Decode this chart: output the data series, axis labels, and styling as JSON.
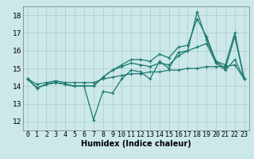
{
  "title": "",
  "xlabel": "Humidex (Indice chaleur)",
  "bg_color": "#cce8e8",
  "grid_color": "#aacccc",
  "line_color": "#1a7870",
  "xlim": [
    -0.5,
    23.5
  ],
  "ylim": [
    11.5,
    18.5
  ],
  "yticks": [
    12,
    13,
    14,
    15,
    16,
    17,
    18
  ],
  "xticks": [
    0,
    1,
    2,
    3,
    4,
    5,
    6,
    7,
    8,
    9,
    10,
    11,
    12,
    13,
    14,
    15,
    16,
    17,
    18,
    19,
    20,
    21,
    22,
    23
  ],
  "series": [
    [
      14.4,
      13.9,
      14.1,
      14.2,
      14.1,
      14.0,
      14.0,
      12.1,
      13.7,
      13.6,
      14.4,
      14.9,
      14.8,
      14.4,
      15.4,
      15.0,
      15.9,
      16.0,
      18.2,
      16.6,
      15.4,
      15.0,
      16.8,
      14.4
    ],
    [
      14.4,
      13.9,
      14.1,
      14.2,
      14.1,
      14.0,
      14.0,
      14.0,
      14.5,
      14.9,
      15.1,
      15.3,
      15.2,
      15.1,
      15.3,
      15.2,
      15.7,
      16.0,
      16.2,
      16.4,
      15.3,
      14.9,
      15.5,
      14.4
    ],
    [
      14.4,
      14.1,
      14.2,
      14.3,
      14.2,
      14.2,
      14.2,
      14.2,
      14.4,
      14.5,
      14.6,
      14.7,
      14.7,
      14.8,
      14.8,
      14.9,
      14.9,
      15.0,
      15.0,
      15.1,
      15.1,
      15.1,
      15.2,
      14.4
    ],
    [
      14.4,
      13.9,
      14.1,
      14.2,
      14.1,
      14.0,
      14.0,
      14.0,
      14.5,
      14.9,
      15.2,
      15.5,
      15.5,
      15.4,
      15.8,
      15.6,
      16.2,
      16.3,
      17.8,
      16.8,
      15.4,
      15.2,
      17.0,
      14.4
    ]
  ],
  "xlabel_fontsize": 7,
  "tick_fontsize": 6,
  "linewidth": 0.9,
  "markersize": 2.5
}
